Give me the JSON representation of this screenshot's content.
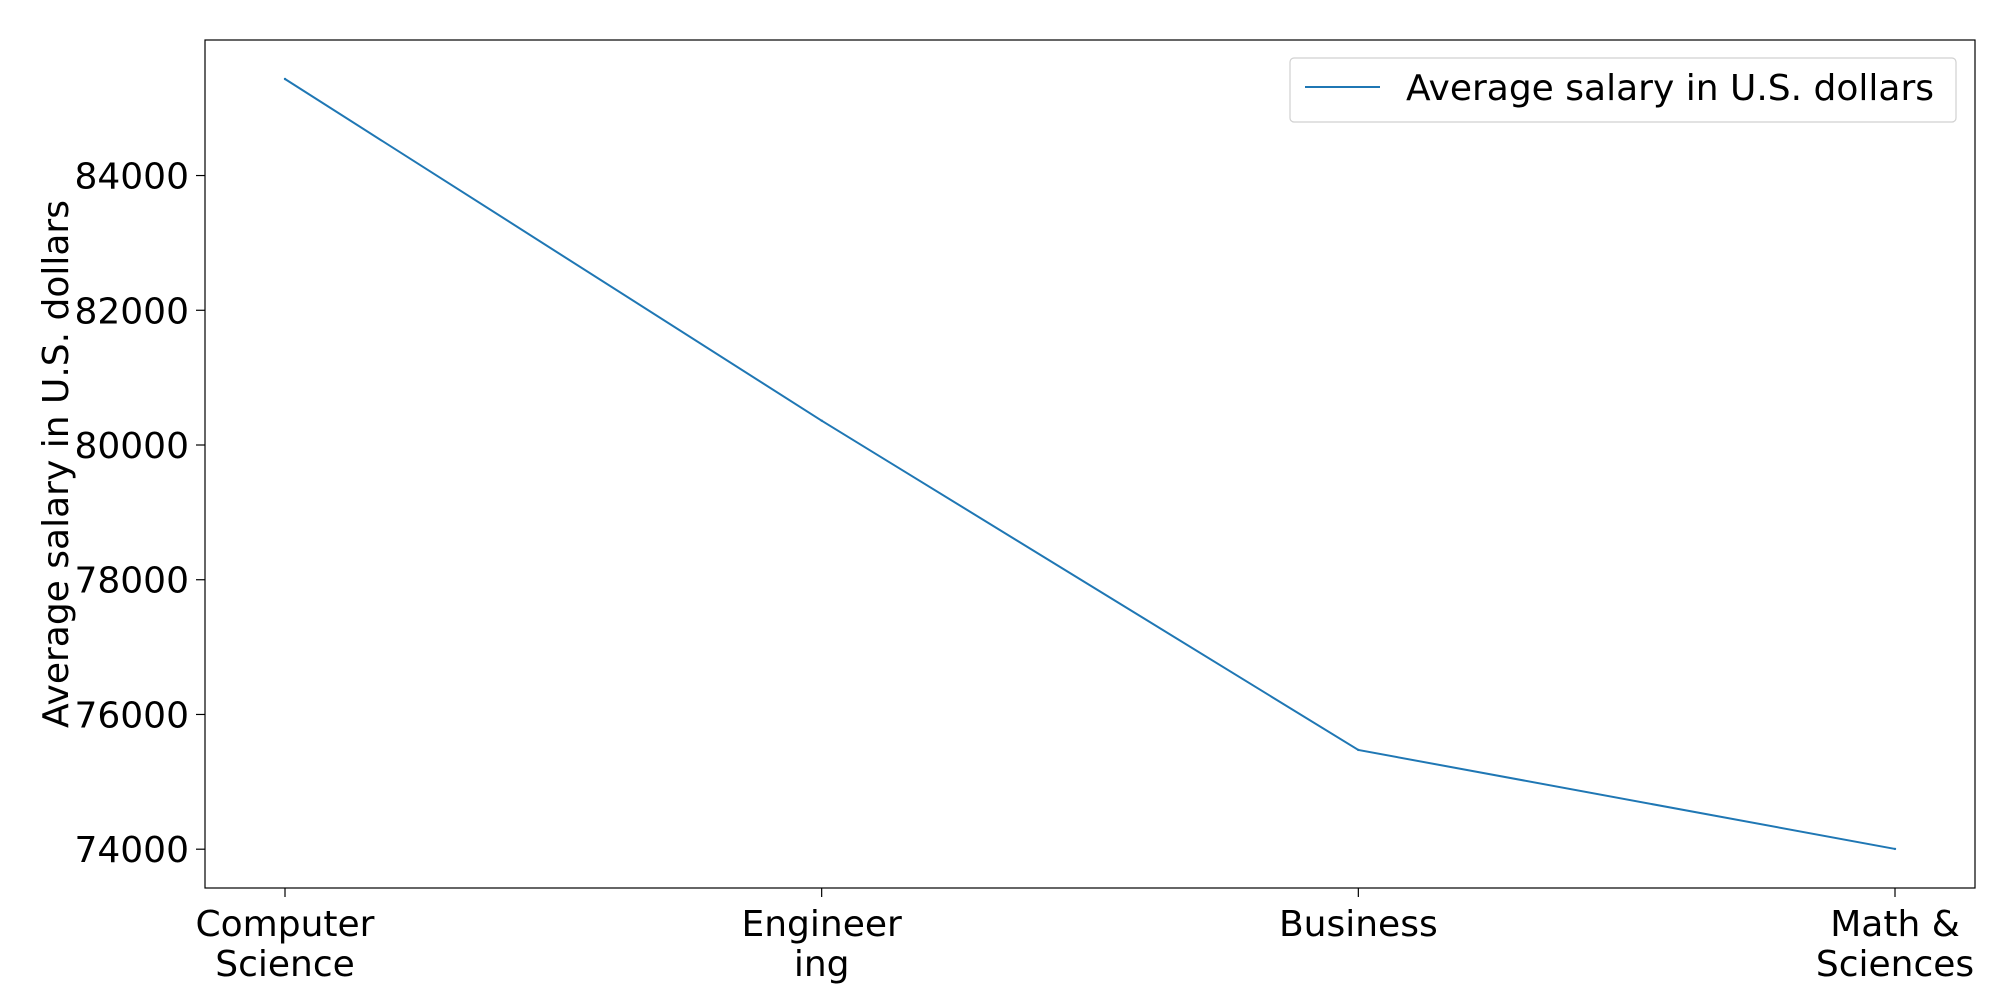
{
  "chart_data": {
    "type": "line",
    "categories": [
      "Computer Science",
      "Engineering",
      "Business",
      "Math & Sciences"
    ],
    "category_tick_labels": [
      [
        "Computer",
        "Science"
      ],
      [
        "Engineer",
        "ing"
      ],
      [
        "Business"
      ],
      [
        "Math &",
        "Sciences"
      ]
    ],
    "series": [
      {
        "name": "Average salary in U.S. dollars",
        "values": [
          85433,
          80361,
          75473,
          74004
        ],
        "color": "#1f77b4"
      }
    ],
    "ylabel": "Average salary in U.S. dollars",
    "xlabel": "",
    "title": "",
    "ylim": [
      73424,
      86012
    ],
    "yticks": [
      74000,
      76000,
      78000,
      80000,
      82000,
      84000
    ],
    "grid": false,
    "legend_position": "upper right"
  }
}
